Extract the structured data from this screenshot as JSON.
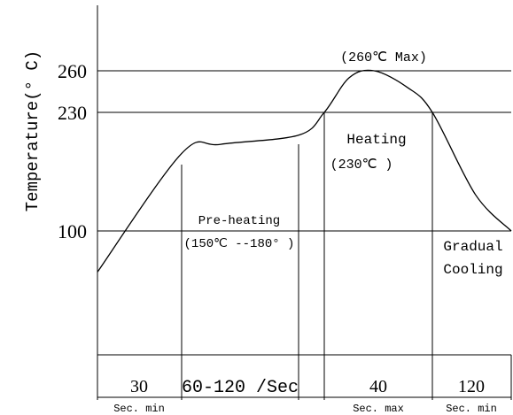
{
  "chart_data": {
    "type": "line",
    "title": "",
    "xlabel": "",
    "ylabel": "Temperature(° C)",
    "y_ticks": [
      {
        "value": 260,
        "label": "260"
      },
      {
        "value": 230,
        "label": "230"
      },
      {
        "value": 100,
        "label": "100"
      }
    ],
    "annotations": {
      "peak": "(260℃  Max)",
      "heating": "Heating",
      "heating_temp": "(230℃ )",
      "preheating": "Pre-heating",
      "preheating_temp": "(150℃ --180° )",
      "cooling_1": "Gradual",
      "cooling_2": "Cooling"
    },
    "segments": [
      {
        "duration": "30",
        "note": "Sec. min"
      },
      {
        "duration": "60-120 /Sec",
        "note": ""
      },
      {
        "duration": "",
        "note": ""
      },
      {
        "duration": "40",
        "note": "Sec. max"
      },
      {
        "duration": "120",
        "note": "Sec. min"
      }
    ],
    "curve_description": "reflow profile: ramp to ~185, preheat plateau ~185-205, spike to 260 peak, above 230 for heating, gradual cooling below 100",
    "series": [
      {
        "values": [
          {
            "t": 0,
            "temp": 55
          },
          {
            "t": 30,
            "temp": 185
          },
          {
            "t": 60,
            "temp": 195
          },
          {
            "t": 120,
            "temp": 205
          },
          {
            "t": 145,
            "temp": 230
          },
          {
            "t": 160,
            "temp": 255
          },
          {
            "t": 175,
            "temp": 260
          },
          {
            "t": 195,
            "temp": 248
          },
          {
            "t": 210,
            "temp": 230
          },
          {
            "t": 240,
            "temp": 140
          },
          {
            "t": 265,
            "temp": 100
          }
        ]
      }
    ],
    "grid": false
  }
}
